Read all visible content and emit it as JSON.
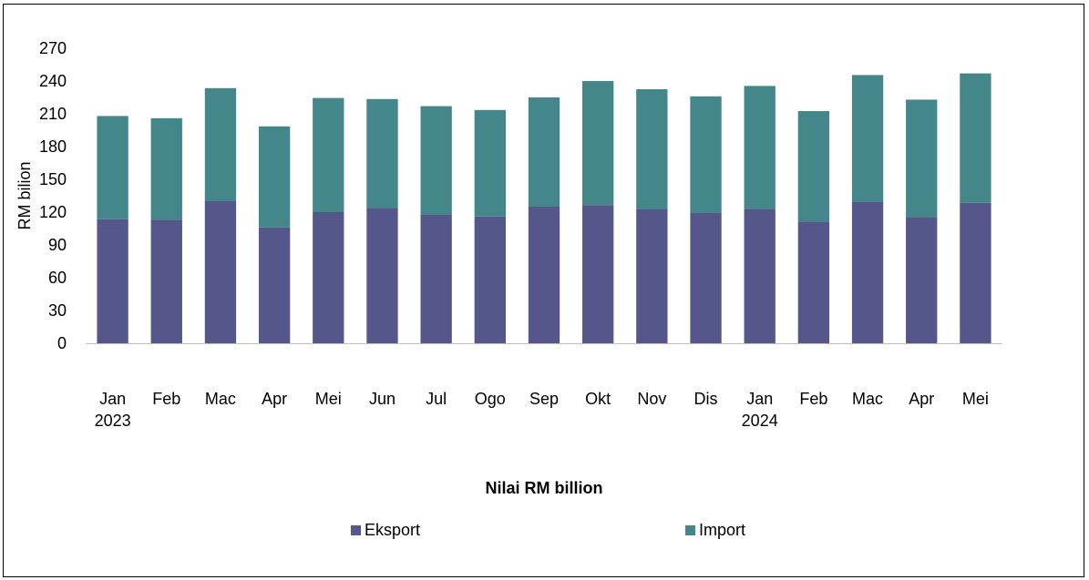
{
  "chart_data": {
    "type": "bar",
    "stacked": true,
    "categories": [
      [
        "Jan",
        "2023"
      ],
      [
        "Feb"
      ],
      [
        "Mac"
      ],
      [
        "Apr"
      ],
      [
        "Mei"
      ],
      [
        "Jun"
      ],
      [
        "Jul"
      ],
      [
        "Ogo"
      ],
      [
        "Sep"
      ],
      [
        "Okt"
      ],
      [
        "Nov"
      ],
      [
        "Dis"
      ],
      [
        "Jan",
        "2024"
      ],
      [
        "Feb"
      ],
      [
        "Mac"
      ],
      [
        "Apr"
      ],
      [
        "Mei"
      ]
    ],
    "series": [
      {
        "name": "Eksport",
        "color": "#55568A",
        "values": [
          113.5,
          113.2,
          130.0,
          106.0,
          120.0,
          124.0,
          117.5,
          116.0,
          125.0,
          126.5,
          122.5,
          119.5,
          123.0,
          111.5,
          129.5,
          115.5,
          128.5
        ]
      },
      {
        "name": "Import",
        "color": "#43878A",
        "values": [
          94.5,
          92.8,
          103.5,
          92.5,
          104.5,
          99.5,
          99.5,
          97.5,
          100.0,
          113.5,
          110.0,
          106.5,
          112.5,
          101.0,
          116.0,
          107.5,
          118.5
        ]
      }
    ],
    "ylabel": "RM bilion",
    "xlabel": "Nilai RM billion",
    "ylim": [
      0,
      270
    ],
    "yticks": [
      0,
      30,
      60,
      90,
      120,
      150,
      180,
      210,
      240,
      270
    ],
    "grid": false,
    "legend": "bottom"
  }
}
